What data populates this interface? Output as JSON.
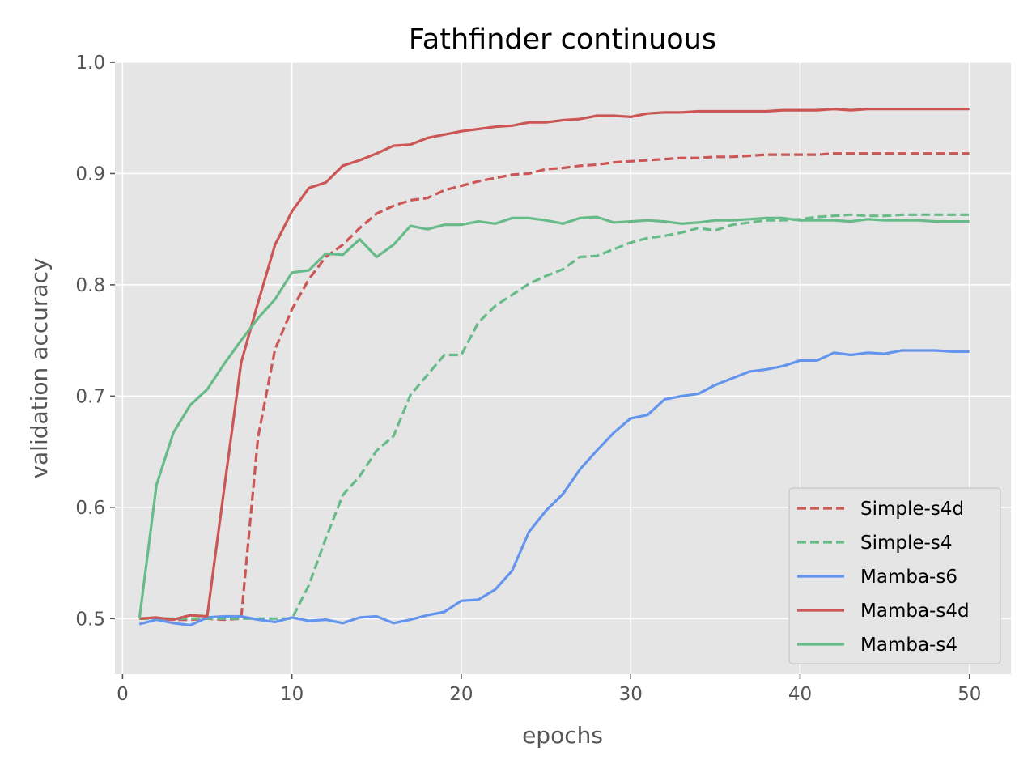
{
  "chart_data": {
    "type": "line",
    "title": "Fathfinder continuous",
    "xlabel": "epochs",
    "ylabel": "validation accuracy",
    "xlim": [
      -0.45,
      52.45
    ],
    "ylim": [
      0.45,
      1.0
    ],
    "xticks": [
      0,
      10,
      20,
      30,
      40,
      50
    ],
    "yticks": [
      0.5,
      0.6,
      0.7,
      0.8,
      0.9,
      1.0
    ],
    "xtick_labels": [
      "0",
      "10",
      "20",
      "30",
      "40",
      "50"
    ],
    "ytick_labels": [
      "0.5",
      "0.6",
      "0.7",
      "0.8",
      "0.9",
      "1.0"
    ],
    "grid": true,
    "legend_position": "lower-right",
    "x": [
      1,
      2,
      3,
      4,
      5,
      6,
      7,
      8,
      9,
      10,
      11,
      12,
      13,
      14,
      15,
      16,
      17,
      18,
      19,
      20,
      21,
      22,
      23,
      24,
      25,
      26,
      27,
      28,
      29,
      30,
      31,
      32,
      33,
      34,
      35,
      36,
      37,
      38,
      39,
      40,
      41,
      42,
      43,
      44,
      45,
      46,
      47,
      48,
      49,
      50
    ],
    "series": [
      {
        "name": "Simple-s4d",
        "color": "#cc5555",
        "dash": "dashed",
        "values": [
          0.5,
          0.5,
          0.499,
          0.499,
          0.5,
          0.499,
          0.5,
          0.663,
          0.742,
          0.778,
          0.805,
          0.825,
          0.836,
          0.851,
          0.864,
          0.871,
          0.876,
          0.878,
          0.885,
          0.889,
          0.893,
          0.896,
          0.899,
          0.9,
          0.904,
          0.905,
          0.907,
          0.908,
          0.91,
          0.911,
          0.912,
          0.913,
          0.914,
          0.914,
          0.915,
          0.915,
          0.916,
          0.917,
          0.917,
          0.917,
          0.917,
          0.918,
          0.918,
          0.918,
          0.918,
          0.918,
          0.918,
          0.918,
          0.918,
          0.918
        ]
      },
      {
        "name": "Simple-s4",
        "color": "#66bb88",
        "dash": "dashed",
        "values": [
          0.5,
          0.5,
          0.5,
          0.5,
          0.5,
          0.5,
          0.5,
          0.5,
          0.5,
          0.5,
          0.53,
          0.572,
          0.611,
          0.628,
          0.651,
          0.664,
          0.701,
          0.719,
          0.737,
          0.737,
          0.766,
          0.781,
          0.791,
          0.801,
          0.808,
          0.814,
          0.825,
          0.826,
          0.832,
          0.838,
          0.842,
          0.844,
          0.847,
          0.851,
          0.849,
          0.854,
          0.856,
          0.858,
          0.858,
          0.859,
          0.861,
          0.862,
          0.863,
          0.862,
          0.862,
          0.863,
          0.863,
          0.863,
          0.863,
          0.863
        ]
      },
      {
        "name": "Mamba-s6",
        "color": "#6495ed",
        "dash": "solid",
        "values": [
          0.495,
          0.499,
          0.496,
          0.494,
          0.501,
          0.502,
          0.502,
          0.499,
          0.497,
          0.501,
          0.498,
          0.499,
          0.496,
          0.501,
          0.502,
          0.496,
          0.499,
          0.503,
          0.506,
          0.516,
          0.517,
          0.526,
          0.543,
          0.578,
          0.597,
          0.612,
          0.634,
          0.651,
          0.667,
          0.68,
          0.683,
          0.697,
          0.7,
          0.702,
          0.71,
          0.716,
          0.722,
          0.724,
          0.727,
          0.732,
          0.732,
          0.739,
          0.737,
          0.739,
          0.738,
          0.741,
          0.741,
          0.741,
          0.74,
          0.74
        ]
      },
      {
        "name": "Mamba-s4d",
        "color": "#cc5555",
        "dash": "solid",
        "values": [
          0.5,
          0.501,
          0.499,
          0.503,
          0.502,
          0.617,
          0.73,
          0.784,
          0.836,
          0.866,
          0.887,
          0.892,
          0.907,
          0.912,
          0.918,
          0.925,
          0.926,
          0.932,
          0.935,
          0.938,
          0.94,
          0.942,
          0.943,
          0.946,
          0.946,
          0.948,
          0.949,
          0.952,
          0.952,
          0.951,
          0.954,
          0.955,
          0.955,
          0.956,
          0.956,
          0.956,
          0.956,
          0.956,
          0.957,
          0.957,
          0.957,
          0.958,
          0.957,
          0.958,
          0.958,
          0.958,
          0.958,
          0.958,
          0.958,
          0.958
        ]
      },
      {
        "name": "Mamba-s4",
        "color": "#66bb88",
        "dash": "solid",
        "values": [
          0.5,
          0.62,
          0.667,
          0.692,
          0.706,
          0.729,
          0.75,
          0.77,
          0.787,
          0.811,
          0.813,
          0.828,
          0.827,
          0.841,
          0.825,
          0.836,
          0.853,
          0.85,
          0.854,
          0.854,
          0.857,
          0.855,
          0.86,
          0.86,
          0.858,
          0.855,
          0.86,
          0.861,
          0.856,
          0.857,
          0.858,
          0.857,
          0.855,
          0.856,
          0.858,
          0.858,
          0.859,
          0.86,
          0.86,
          0.858,
          0.858,
          0.858,
          0.857,
          0.859,
          0.858,
          0.858,
          0.858,
          0.857,
          0.857,
          0.857
        ]
      }
    ]
  }
}
